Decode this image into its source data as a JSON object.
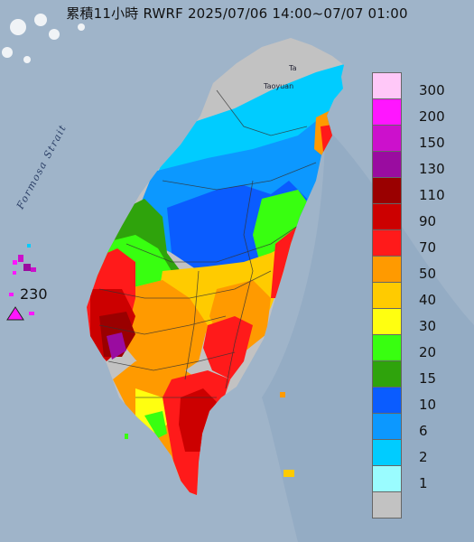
{
  "title": "累積11小時 RWRF 2025/07/06 14:00~07/07 01:00",
  "map_labels": {
    "strait": "Formosa Strait",
    "city_taipei": "Ta",
    "city_taoyuan": "Taoyuan",
    "max_value": "230"
  },
  "legend": {
    "items": [
      {
        "label": "300",
        "color": "#ffc8f8"
      },
      {
        "label": "200",
        "color": "#ff16ff"
      },
      {
        "label": "150",
        "color": "#cc10cc"
      },
      {
        "label": "130",
        "color": "#9a0ca0"
      },
      {
        "label": "110",
        "color": "#9a0000"
      },
      {
        "label": "90",
        "color": "#cc0000"
      },
      {
        "label": "70",
        "color": "#ff1a1a"
      },
      {
        "label": "50",
        "color": "#ff9a00"
      },
      {
        "label": "40",
        "color": "#ffcb00"
      },
      {
        "label": "30",
        "color": "#ffff10"
      },
      {
        "label": "20",
        "color": "#38ff10"
      },
      {
        "label": "15",
        "color": "#2fa30c"
      },
      {
        "label": "10",
        "color": "#0a5cff"
      },
      {
        "label": "6",
        "color": "#0c98ff"
      },
      {
        "label": "2",
        "color": "#00ccff"
      },
      {
        "label": "1",
        "color": "#9afcff"
      },
      {
        "label": "",
        "color": "#c2c2c2"
      }
    ]
  },
  "colors": {
    "sea": "#9fb4c9",
    "marker": "#ff16ff"
  },
  "icons": {
    "max_marker": "triangle-marker-icon"
  }
}
